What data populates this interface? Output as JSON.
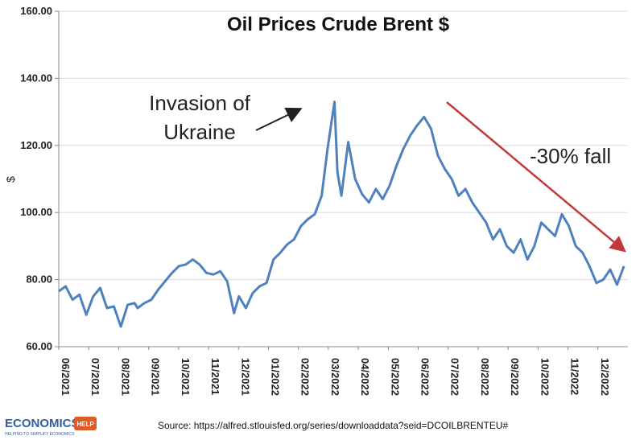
{
  "chart_data": {
    "type": "line",
    "title": "Oil Prices Crude Brent $",
    "ylabel": "$",
    "xlabel": "",
    "ylim": [
      60,
      160
    ],
    "yticks": [
      "60.00",
      "80.00",
      "100.00",
      "120.00",
      "140.00",
      "160.00"
    ],
    "xticks": [
      "06/2021",
      "07/2021",
      "08/2021",
      "09/2021",
      "10/2021",
      "11/2021",
      "12/2021",
      "01/2022",
      "02/2022",
      "03/2022",
      "04/2022",
      "05/2022",
      "06/2022",
      "07/2022",
      "08/2022",
      "09/2022",
      "10/2022",
      "11/2022",
      "12/2022"
    ],
    "grid": "horizontal",
    "line_color": "#4f81bd",
    "arrow_color": "#c0393b",
    "series": [
      {
        "x": [
          "2021-06-01",
          "2021-06-08",
          "2021-06-15",
          "2021-06-22",
          "2021-06-29",
          "2021-07-06",
          "2021-07-13",
          "2021-07-20",
          "2021-07-27",
          "2021-08-03",
          "2021-08-10",
          "2021-08-17",
          "2021-08-20",
          "2021-08-27",
          "2021-09-03",
          "2021-09-10",
          "2021-09-17",
          "2021-09-24",
          "2021-10-01",
          "2021-10-08",
          "2021-10-15",
          "2021-10-22",
          "2021-10-29",
          "2021-11-05",
          "2021-11-12",
          "2021-11-19",
          "2021-11-26",
          "2021-12-01",
          "2021-12-08",
          "2021-12-15",
          "2021-12-22",
          "2021-12-29",
          "2022-01-05",
          "2022-01-12",
          "2022-01-19",
          "2022-01-26",
          "2022-02-02",
          "2022-02-09",
          "2022-02-16",
          "2022-02-23",
          "2022-03-01",
          "2022-03-08",
          "2022-03-11",
          "2022-03-15",
          "2022-03-22",
          "2022-03-29",
          "2022-04-05",
          "2022-04-12",
          "2022-04-19",
          "2022-04-26",
          "2022-05-03",
          "2022-05-10",
          "2022-05-17",
          "2022-05-24",
          "2022-05-31",
          "2022-06-07",
          "2022-06-14",
          "2022-06-21",
          "2022-06-28",
          "2022-07-05",
          "2022-07-12",
          "2022-07-19",
          "2022-07-26",
          "2022-08-02",
          "2022-08-09",
          "2022-08-16",
          "2022-08-23",
          "2022-08-30",
          "2022-09-06",
          "2022-09-13",
          "2022-09-20",
          "2022-09-27",
          "2022-10-04",
          "2022-10-11",
          "2022-10-18",
          "2022-10-25",
          "2022-11-01",
          "2022-11-08",
          "2022-11-15",
          "2022-11-22",
          "2022-11-29",
          "2022-12-06",
          "2022-12-13",
          "2022-12-20",
          "2022-12-27"
        ],
        "values": [
          76.5,
          78.0,
          74.0,
          75.5,
          69.5,
          75.0,
          77.5,
          71.5,
          72.0,
          66.0,
          72.5,
          73.0,
          71.5,
          73.0,
          74.0,
          77.0,
          79.5,
          82.0,
          84.0,
          84.5,
          86.0,
          84.5,
          82.0,
          81.5,
          82.5,
          79.5,
          70.0,
          75.0,
          71.5,
          76.0,
          78.0,
          79.0,
          86.0,
          88.0,
          90.5,
          92.0,
          96.0,
          98.0,
          99.5,
          105.0,
          119.0,
          133.0,
          112.0,
          105.0,
          121.0,
          110.0,
          105.5,
          103.0,
          107.0,
          104.0,
          108.0,
          114.0,
          119.0,
          123.0,
          126.0,
          128.5,
          125.0,
          117.0,
          113.0,
          110.0,
          105.0,
          107.0,
          103.0,
          100.0,
          97.0,
          92.0,
          95.0,
          90.0,
          88.0,
          92.0,
          86.0,
          90.0,
          97.0,
          95.0,
          93.0,
          99.5,
          96.0,
          90.0,
          88.0,
          84.0,
          79.0,
          80.0,
          83.0,
          78.5,
          84.0
        ]
      }
    ],
    "annotations": [
      {
        "text_line1": "Invasion of",
        "text_line2": "Ukraine"
      },
      {
        "text": "-30% fall"
      }
    ],
    "source": "Source: https://alfred.stlouisfed.org/series/downloaddata?seid=DCOILBRENTEU#",
    "logo": {
      "main": "ECONOMICS",
      "badge": "HELP",
      "tagline": "HELPING TO SIMPLIFY ECONOMICS"
    }
  }
}
